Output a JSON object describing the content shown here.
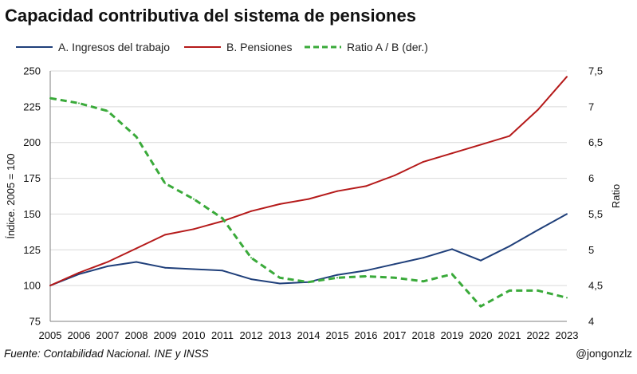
{
  "header": {
    "title": "Capacidad contributiva del sistema de pensiones"
  },
  "footer": {
    "source": "Fuente: Contabilidad Nacional. INE y INSS",
    "handle": "@jongonzlz"
  },
  "chart_data": {
    "type": "line",
    "title": "Capacidad contributiva del sistema de pensiones",
    "ylabel": "Índice. 2005 = 100",
    "y2label": "Ratio",
    "x": [
      "2005",
      "2006",
      "2007",
      "2008",
      "2009",
      "2010",
      "2011",
      "2012",
      "2013",
      "2014",
      "2015",
      "2016",
      "2017",
      "2018",
      "2019",
      "2020",
      "2021",
      "2022",
      "2023"
    ],
    "ylim": [
      75,
      250
    ],
    "yticks": [
      "75",
      "100",
      "125",
      "150",
      "175",
      "200",
      "225",
      "250"
    ],
    "y2lim": [
      4,
      7.5
    ],
    "y2ticks": [
      "4",
      "4,5",
      "5",
      "5,5",
      "6",
      "6,5",
      "7",
      "7,5"
    ],
    "grid": true,
    "legend_position": "top",
    "series": [
      {
        "name": "A. Ingresos del trabajo",
        "axis": "left",
        "color": "#1f3f7a",
        "dash": false,
        "values": [
          100,
          108,
          113.5,
          116.5,
          112.5,
          111.5,
          110.5,
          104.5,
          101.5,
          102.5,
          107.5,
          110.5,
          115,
          119.5,
          125.5,
          117.5,
          127.5,
          139,
          150
        ]
      },
      {
        "name": "B. Pensiones",
        "axis": "left",
        "color": "#b51a1a",
        "dash": false,
        "values": [
          100,
          109,
          116.5,
          126,
          135.5,
          139.5,
          145,
          152,
          157,
          160.5,
          166,
          169.5,
          177,
          186.5,
          192.5,
          198.5,
          204.5,
          223,
          246
        ]
      },
      {
        "name": "Ratio A / B (der.)",
        "axis": "right",
        "color": "#3aaa3a",
        "dash": true,
        "values": [
          7.12,
          7.05,
          6.94,
          6.58,
          5.93,
          5.71,
          5.44,
          4.89,
          4.61,
          4.55,
          4.61,
          4.63,
          4.61,
          4.56,
          4.66,
          4.21,
          4.43,
          4.43,
          4.33
        ]
      }
    ]
  }
}
